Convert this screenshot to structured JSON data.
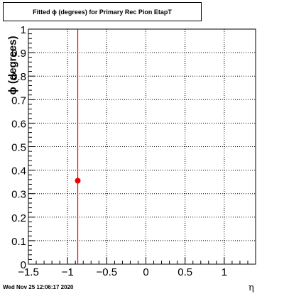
{
  "footer": {
    "timestamp": "Wed Nov 25 12:06:17 2020"
  },
  "colors": {
    "marker": "#ee0000",
    "axis": "#000000",
    "grid": "#000000",
    "background": "#ffffff"
  },
  "chart_data": {
    "type": "scatter",
    "title": "Fitted ϕ (degrees) for Primary Rec Pion EtapT",
    "xlabel": "η",
    "ylabel": "ϕ (degrees)",
    "xlim": [
      -1.5,
      1.4
    ],
    "ylim": [
      0,
      1
    ],
    "x_ticks": [
      -1.5,
      -1,
      -0.5,
      0,
      0.5,
      1
    ],
    "x_tick_labels": [
      "−1.5",
      "−1",
      "−0.5",
      "0",
      "0.5",
      "1"
    ],
    "y_ticks": [
      0,
      0.1,
      0.2,
      0.3,
      0.4,
      0.5,
      0.6,
      0.7,
      0.8,
      0.9,
      1
    ],
    "y_tick_labels": [
      "0",
      "0.1",
      "0.2",
      "0.3",
      "0.4",
      "0.5",
      "0.6",
      "0.7",
      "0.8",
      "0.9",
      "1"
    ],
    "grid": true,
    "series": [
      {
        "points": [
          {
            "x": -0.87,
            "y": 0.355,
            "y_err_low": 0.355,
            "y_err_high": 0.645
          }
        ]
      }
    ]
  }
}
